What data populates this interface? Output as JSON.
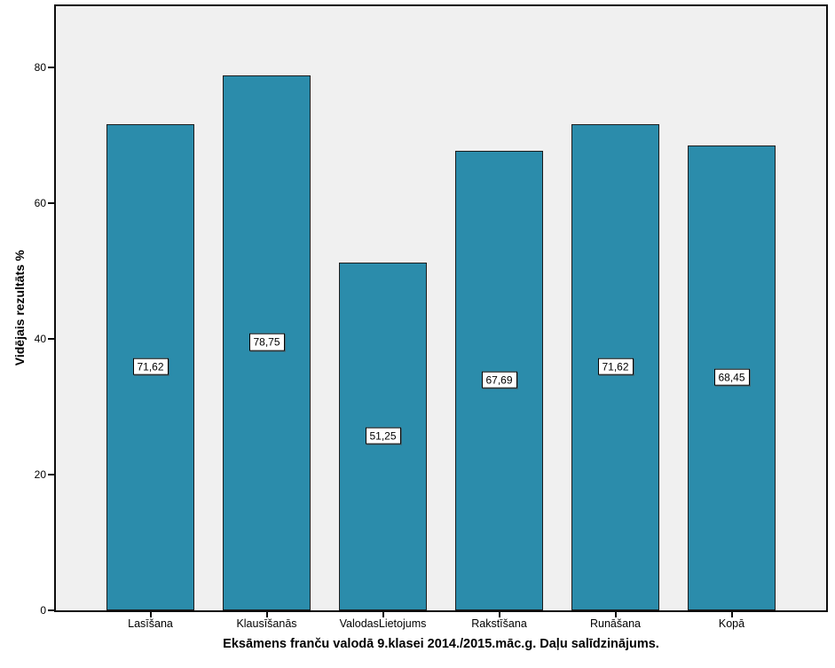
{
  "chart_data": {
    "type": "bar",
    "categories": [
      "Lasīšana",
      "Klausīšanās",
      "ValodasLietojums",
      "Rakstīšana",
      "Runāšana",
      "Kopā"
    ],
    "values": [
      71.62,
      78.75,
      51.25,
      67.69,
      71.62,
      68.45
    ],
    "value_labels": [
      "71,62",
      "78,75",
      "51,25",
      "67,69",
      "71,62",
      "68,45"
    ],
    "title": "Eksāmens franču valodā 9.klasei 2014./2015.māc.g. Daļu salīdzinājums.",
    "title_position": "bottom",
    "ylabel": "Vidējais rezultāts %",
    "xlabel": "",
    "yticks": [
      0,
      20,
      40,
      60,
      80
    ],
    "ylim": [
      0,
      89
    ],
    "grid": false,
    "legend": null,
    "colors": {
      "bar_fill": "#2B8CAB",
      "bar_stroke": "#1c1c1c",
      "plot_background": "#F0F0F0",
      "page_background": "#FFFFFF",
      "text": "#000000"
    }
  }
}
